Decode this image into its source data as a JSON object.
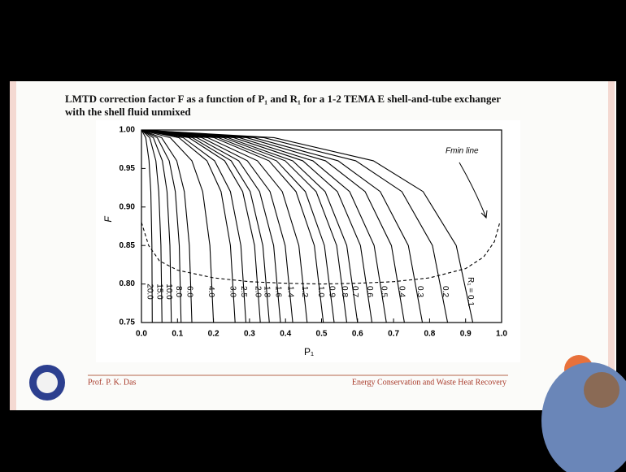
{
  "chart_data": {
    "type": "line",
    "title": "LMTD correction factor F as a function of P₁ and R₁ for a 1-2 TEMA E shell-and-tube exchanger with the shell fluid unmixed",
    "x_label": "P₁",
    "y_label": "F",
    "xlim": [
      0,
      1
    ],
    "ylim": [
      0.75,
      1
    ],
    "xticks": [
      {
        "value": 0,
        "label": "0.0"
      },
      0.1,
      0.2,
      0.3,
      0.4,
      0.5,
      0.6,
      0.7,
      0.8,
      0.9,
      {
        "value": 1,
        "label": "1.0"
      }
    ],
    "yticks": [
      {
        "value": 0.75,
        "label": "0.75"
      },
      {
        "value": 0.8,
        "label": "0.80"
      },
      0.85,
      {
        "value": 0.9,
        "label": "0.90"
      },
      0.95,
      {
        "value": 1,
        "label": "1.00"
      }
    ],
    "series": [
      {
        "name": "20.0",
        "color": "#000000",
        "x": [
          0,
          0.012,
          0.021,
          0.026,
          0.029,
          0.03
        ],
        "values": [
          1,
          0.99,
          0.96,
          0.92,
          0.85,
          0.75
        ]
      },
      {
        "name": "15.0",
        "color": "#000000",
        "x": [
          0,
          0.023,
          0.04,
          0.048,
          0.054,
          0.057
        ],
        "values": [
          1,
          0.99,
          0.96,
          0.92,
          0.85,
          0.75
        ]
      },
      {
        "name": "10.0",
        "color": "#000000",
        "x": [
          0,
          0.033,
          0.058,
          0.071,
          0.079,
          0.083
        ],
        "values": [
          1,
          0.99,
          0.96,
          0.92,
          0.85,
          0.75
        ]
      },
      {
        "name": "8.0",
        "color": "#000000",
        "x": [
          0,
          0.044,
          0.077,
          0.094,
          0.105,
          0.11
        ],
        "values": [
          1,
          0.99,
          0.96,
          0.92,
          0.85,
          0.75
        ]
      },
      {
        "name": "6.0",
        "color": "#000000",
        "x": [
          0,
          0.056,
          0.098,
          0.119,
          0.133,
          0.14
        ],
        "values": [
          1,
          0.99,
          0.96,
          0.92,
          0.85,
          0.75
        ]
      },
      {
        "name": "4.0",
        "color": "#000000",
        "x": [
          0,
          0.08,
          0.14,
          0.17,
          0.19,
          0.2
        ],
        "values": [
          1,
          0.99,
          0.96,
          0.92,
          0.85,
          0.75
        ]
      },
      {
        "name": "3.0",
        "color": "#000000",
        "x": [
          0,
          0.104,
          0.182,
          0.221,
          0.247,
          0.26
        ],
        "values": [
          1,
          0.99,
          0.96,
          0.92,
          0.85,
          0.75
        ]
      },
      {
        "name": "2.5",
        "color": "#000000",
        "x": [
          0,
          0.116,
          0.203,
          0.247,
          0.276,
          0.29
        ],
        "values": [
          1,
          0.99,
          0.96,
          0.92,
          0.85,
          0.75
        ]
      },
      {
        "name": "2.0",
        "color": "#000000",
        "x": [
          0,
          0.132,
          0.231,
          0.281,
          0.314,
          0.33
        ],
        "values": [
          1,
          0.99,
          0.96,
          0.92,
          0.85,
          0.75
        ]
      },
      {
        "name": "1.8",
        "color": "#000000",
        "x": [
          0,
          0.142,
          0.249,
          0.302,
          0.337,
          0.355
        ],
        "values": [
          1,
          0.99,
          0.96,
          0.92,
          0.85,
          0.75
        ]
      },
      {
        "name": "1.6",
        "color": "#000000",
        "x": [
          0,
          0.154,
          0.27,
          0.328,
          0.367,
          0.386
        ],
        "values": [
          1,
          0.99,
          0.96,
          0.92,
          0.85,
          0.75
        ]
      },
      {
        "name": "1.4",
        "color": "#000000",
        "x": [
          0,
          0.168,
          0.294,
          0.357,
          0.399,
          0.42
        ],
        "values": [
          1,
          0.99,
          0.96,
          0.92,
          0.85,
          0.75
        ]
      },
      {
        "name": "1.2",
        "color": "#000000",
        "x": [
          0,
          0.184,
          0.322,
          0.391,
          0.437,
          0.46
        ],
        "values": [
          1,
          0.99,
          0.96,
          0.92,
          0.85,
          0.75
        ]
      },
      {
        "name": "1.0",
        "color": "#000000",
        "x": [
          0,
          0.202,
          0.354,
          0.429,
          0.48,
          0.505
        ],
        "values": [
          1,
          0.99,
          0.96,
          0.92,
          0.85,
          0.75
        ]
      },
      {
        "name": "0.9",
        "color": "#000000",
        "x": [
          0,
          0.214,
          0.375,
          0.455,
          0.508,
          0.535
        ],
        "values": [
          1,
          0.99,
          0.96,
          0.92,
          0.85,
          0.75
        ]
      },
      {
        "name": "0.8",
        "color": "#000000",
        "x": [
          0,
          0.228,
          0.399,
          0.485,
          0.542,
          0.57
        ],
        "values": [
          1,
          0.99,
          0.96,
          0.92,
          0.85,
          0.75
        ]
      },
      {
        "name": "0.7",
        "color": "#000000",
        "x": [
          0,
          0.24,
          0.42,
          0.51,
          0.57,
          0.6
        ],
        "values": [
          1,
          0.99,
          0.96,
          0.92,
          0.85,
          0.75
        ]
      },
      {
        "name": "0.6",
        "color": "#000000",
        "x": [
          0,
          0.256,
          0.448,
          0.544,
          0.608,
          0.64
        ],
        "values": [
          1,
          0.99,
          0.96,
          0.92,
          0.85,
          0.75
        ]
      },
      {
        "name": "0.5",
        "color": "#000000",
        "x": [
          0,
          0.272,
          0.476,
          0.578,
          0.646,
          0.68
        ],
        "values": [
          1,
          0.99,
          0.96,
          0.92,
          0.85,
          0.75
        ]
      },
      {
        "name": "0.4",
        "color": "#000000",
        "x": [
          0,
          0.292,
          0.511,
          0.621,
          0.694,
          0.73
        ],
        "values": [
          1,
          0.99,
          0.96,
          0.92,
          0.85,
          0.75
        ]
      },
      {
        "name": "0.3",
        "color": "#000000",
        "x": [
          0,
          0.312,
          0.546,
          0.663,
          0.741,
          0.78
        ],
        "values": [
          1,
          0.99,
          0.96,
          0.92,
          0.85,
          0.75
        ]
      },
      {
        "name": "0.2",
        "color": "#000000",
        "x": [
          0,
          0.34,
          0.595,
          0.723,
          0.808,
          0.85
        ],
        "values": [
          1,
          0.99,
          0.96,
          0.92,
          0.85,
          0.75
        ]
      },
      {
        "name": "R₁ = 0.1",
        "color": "#000000",
        "x": [
          0,
          0.368,
          0.644,
          0.782,
          0.874,
          0.92
        ],
        "values": [
          1,
          0.99,
          0.96,
          0.92,
          0.85,
          0.75
        ]
      },
      {
        "name": "Fmin line",
        "color": "#000000",
        "dashed": true,
        "x": [
          0,
          0.02,
          0.05,
          0.1,
          0.2,
          0.3,
          0.4,
          0.5,
          0.6,
          0.7,
          0.8,
          0.9,
          0.95,
          0.98,
          0.995
        ],
        "values": [
          0.88,
          0.85,
          0.83,
          0.818,
          0.808,
          0.803,
          0.801,
          0.8,
          0.801,
          0.803,
          0.808,
          0.82,
          0.835,
          0.855,
          0.88
        ]
      }
    ]
  },
  "footer": {
    "left": "Prof. P. K. Das",
    "right": "Energy Conservation and Waste Heat Recovery"
  }
}
